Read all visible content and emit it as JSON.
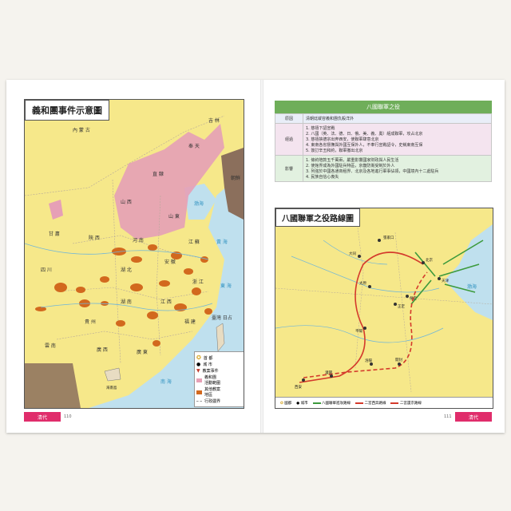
{
  "left_page": {
    "map_title": "義和團事件示意圖",
    "footer_tab": "清代",
    "page_number": "110",
    "regions": {
      "inner_mongolia": "內 蒙 古",
      "jilin": "吉 林",
      "fengtian": "奉 天",
      "korea": "朝鮮",
      "zhili": "直 隸",
      "shanxi": "山 西",
      "shandong": "山 東",
      "gansu": "甘 肅",
      "shaanxi": "陝 西",
      "henan": "河 南",
      "anhui": "安 徽",
      "jiangsu": "江 蘇",
      "sichuan": "四 川",
      "hubei": "湖 北",
      "zhejiang": "浙 江",
      "hunan": "湖 南",
      "jiangxi": "江 西",
      "guizhou": "貴 州",
      "fujian": "福 建",
      "yunnan": "雲 南",
      "guangxi": "廣 西",
      "guangdong": "廣 東",
      "taiwan": "臺灣\n日占",
      "bohai": "渤海",
      "huanghai": "黃 海",
      "donghai": "東 海",
      "nanhai": "南 海",
      "hainan": "海南島"
    },
    "cities": [
      "北京",
      "天津",
      "太原",
      "濟南",
      "開封",
      "西安",
      "南京",
      "上海",
      "武昌",
      "成都",
      "長沙",
      "南昌",
      "福州",
      "貴陽",
      "昆明",
      "桂林",
      "廣州"
    ],
    "legend": [
      {
        "symbol": "capital",
        "label": "首 都"
      },
      {
        "symbol": "city",
        "label": "城 市"
      },
      {
        "symbol": "incident",
        "label": "教案事件"
      },
      {
        "symbol": "boxer",
        "label": "義和團\n活動範圍"
      },
      {
        "symbol": "other",
        "label": "其他教案\n地區"
      },
      {
        "symbol": "border",
        "label": "行政疆界"
      }
    ],
    "colors": {
      "land": "#f6e88a",
      "boxer": "#e6a0b6",
      "incident": "#d2691e",
      "sea": "#bfe0ee",
      "korea": "#8b6f5c"
    }
  },
  "right_page": {
    "table_title": "八國聯軍之役",
    "rows": [
      {
        "head": "原因",
        "lines": [
          "清朝廷縱容義和團仇殺洋外"
        ]
      },
      {
        "head": "經過",
        "lines": [
          "1. 慈禧下詔宣戰",
          "2. 八國（英、法、德、日、俄、美、義、奧）組成聯軍，攻占北京",
          "3. 慈禧挾德宗出奔西安，使聯軍肆意北京",
          "4. 東南各省督撫與外國互保外人，不奉行宣戰詔令，史稱東南互保",
          "5. 簽訂辛丑和約，聯軍撤出北京"
        ]
      },
      {
        "head": "影響",
        "lines": [
          "1. 條約賠款五千萬兩，嚴重影響國家財政與人民生活",
          "2. 使館界成為外國駐兵特區，京畿防衛受制於外人",
          "3. 列強於中國各通商租界、北京及各地進行軍事佔領，中國境內十二處駐兵",
          "4. 民族自信心喪失"
        ]
      }
    ],
    "map_title": "八國聯軍之役路線圖",
    "footer_tab": "清代",
    "page_number": "111",
    "route_map": {
      "bohai": "渤海",
      "cities": [
        "張家口",
        "北京",
        "天津",
        "大同",
        "保定",
        "太原",
        "正定",
        "平陽",
        "潼關",
        "西安",
        "洛陽",
        "開封",
        "山海關",
        "塘沽",
        "大沽",
        "榆關"
      ]
    },
    "legend": [
      {
        "symbol": "capital",
        "label": "國都"
      },
      {
        "symbol": "city",
        "label": "城市"
      },
      {
        "symbol": "allied",
        "label": "八國聯軍進攻路線"
      },
      {
        "symbol": "flee",
        "label": "二宮西奔路線"
      },
      {
        "symbol": "return",
        "label": "二宮還京路線"
      }
    ],
    "colors": {
      "header": "#6fae5a",
      "row1": "#e9eef8",
      "row2": "#f4e4ef",
      "row3": "#e2f1e0",
      "allied": "#3c9a3c",
      "route": "#d43a2c"
    }
  }
}
